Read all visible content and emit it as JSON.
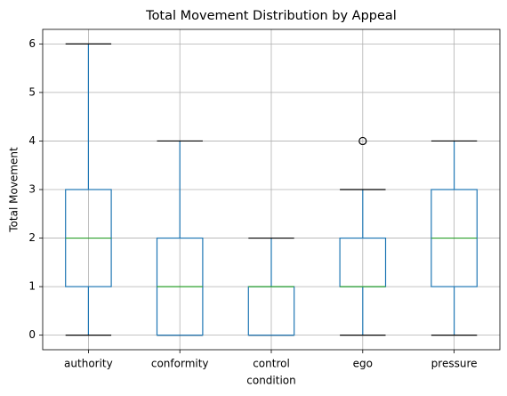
{
  "chart_data": {
    "type": "box",
    "title": "Total Movement Distribution by Appeal",
    "x_label": "condition",
    "y_label": "Total Movement",
    "categories": [
      "authority",
      "conformity",
      "control",
      "ego",
      "pressure"
    ],
    "boxes": [
      {
        "whislo": 0,
        "q1": 1,
        "med": 2,
        "q3": 3,
        "whishi": 6,
        "fliers": []
      },
      {
        "whislo": 0,
        "q1": 0,
        "med": 1,
        "q3": 2,
        "whishi": 4,
        "fliers": []
      },
      {
        "whislo": 0,
        "q1": 0,
        "med": 1,
        "q3": 1,
        "whishi": 2,
        "fliers": []
      },
      {
        "whislo": 0,
        "q1": 1,
        "med": 1,
        "q3": 2,
        "whishi": 3,
        "fliers": [
          4
        ]
      },
      {
        "whislo": 0,
        "q1": 1,
        "med": 2,
        "q3": 3,
        "whishi": 4,
        "fliers": []
      }
    ],
    "box_color": "#1f77b4",
    "median_color": "#2ca02c",
    "cap_color": "#000000",
    "ylim": [
      -0.3,
      6.3
    ],
    "yticks": [
      0,
      1,
      2,
      3,
      4,
      5,
      6
    ],
    "grid": true
  }
}
